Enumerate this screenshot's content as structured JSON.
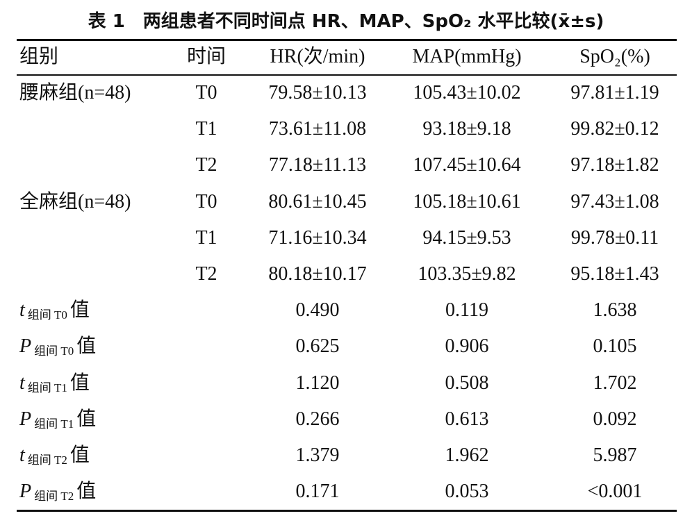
{
  "title": {
    "label": "表 1",
    "text": "两组患者不同时间点 HR、MAP、SpO₂ 水平比较(x̄±s)"
  },
  "table": {
    "headers": [
      "组别",
      "时间",
      "HR(次/min)",
      "MAP(mmHg)",
      "SpO₂(%)"
    ],
    "rows": [
      {
        "group": "腰麻组(n=48)",
        "time": "T0",
        "values": [
          "79.58±10.13",
          "105.43±10.02",
          "97.81±1.19"
        ]
      },
      {
        "time": "T1",
        "values": [
          "73.61±11.08",
          "93.18±9.18",
          "99.82±0.12"
        ]
      },
      {
        "time": "T2",
        "values": [
          "77.18±11.13",
          "107.45±10.64",
          "97.18±1.82"
        ]
      },
      {
        "group": "全麻组(n=48)",
        "time": "T0",
        "values": [
          "80.61±10.45",
          "105.18±10.61",
          "97.43±1.08"
        ]
      },
      {
        "time": "T1",
        "values": [
          "71.16±10.34",
          "94.15±9.53",
          "99.78±0.11"
        ]
      },
      {
        "time": "T2",
        "values": [
          "80.18±10.17",
          "103.35±9.82",
          "95.18±1.43"
        ]
      }
    ],
    "stats": [
      {
        "symbol": "t",
        "sub": "组间 T0",
        "suffix": "值",
        "values": [
          "0.490",
          "0.119",
          "1.638"
        ]
      },
      {
        "symbol": "P",
        "sub": "组间 T0",
        "suffix": "值",
        "values": [
          "0.625",
          "0.906",
          "0.105"
        ]
      },
      {
        "symbol": "t",
        "sub": "组间 T1",
        "suffix": "值",
        "values": [
          "1.120",
          "0.508",
          "1.702"
        ]
      },
      {
        "symbol": "P",
        "sub": "组间 T1",
        "suffix": "值",
        "values": [
          "0.266",
          "0.613",
          "0.092"
        ]
      },
      {
        "symbol": "t",
        "sub": "组间 T2",
        "suffix": "值",
        "values": [
          "1.379",
          "1.962",
          "5.987"
        ]
      },
      {
        "symbol": "P",
        "sub": "组间 T2",
        "suffix": "值",
        "values": [
          "0.171",
          "0.053",
          "<0.001"
        ]
      }
    ]
  }
}
